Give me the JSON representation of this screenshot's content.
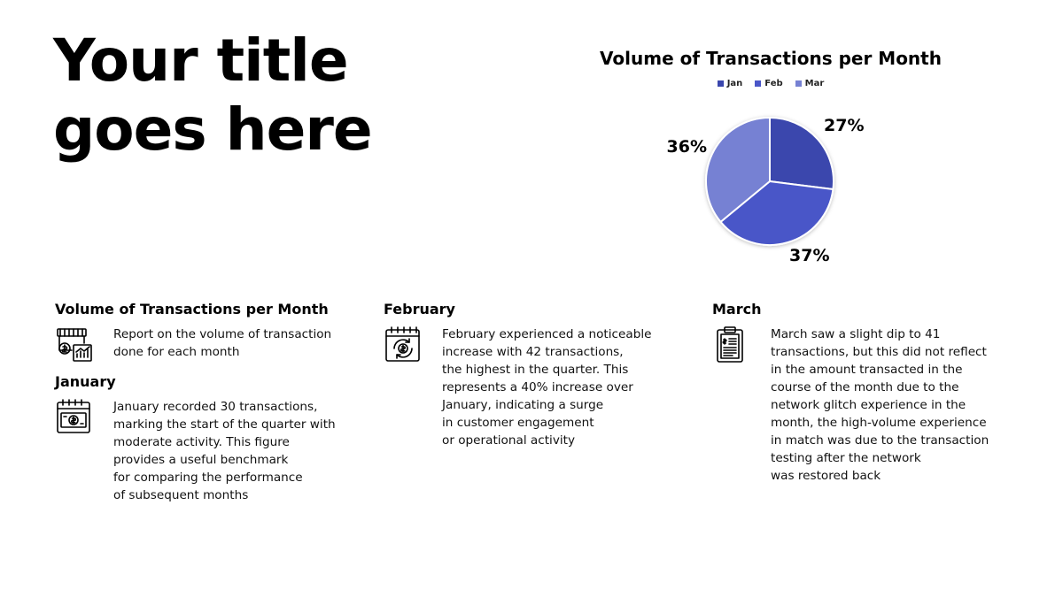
{
  "title": "Your title\ngoes here",
  "colors": {
    "jan": "#3a46ad",
    "feb": "#4a56c8",
    "mar": "#7681d3"
  },
  "chart_data": {
    "type": "pie",
    "title": "Volume of Transactions per Month",
    "categories": [
      "Jan",
      "Feb",
      "Mar"
    ],
    "values": [
      27,
      37,
      36
    ],
    "labels": [
      "27%",
      "37%",
      "36%"
    ],
    "legend_position": "top"
  },
  "sections": {
    "overview": {
      "heading": "Volume of Transactions per Month",
      "text": "Report on the volume of transaction\ndone for each month",
      "icon": "store-analytics-icon"
    },
    "january": {
      "heading": "January",
      "text": "January recorded 30 transactions,\nmarking the start of the quarter with\nmoderate activity. This figure\nprovides a useful benchmark\nfor comparing the performance\nof subsequent months",
      "icon": "calendar-money-icon"
    },
    "february": {
      "heading": "February",
      "text": "February experienced a noticeable\nincrease with 42 transactions,\nthe highest in the quarter. This\nrepresents a 40% increase over\nJanuary, indicating a surge\nin customer engagement\nor operational activity",
      "icon": "calendar-cycle-icon"
    },
    "march": {
      "heading": "March",
      "text": "March saw a slight dip to 41\ntransactions, but this did not reflect\nin the amount transacted in the\ncourse of the month due to the\nnetwork glitch experience in the\nmonth, the high-volume experience\nin match was due to the transaction\ntesting after the network\nwas restored back",
      "icon": "receipt-clipboard-icon"
    }
  }
}
